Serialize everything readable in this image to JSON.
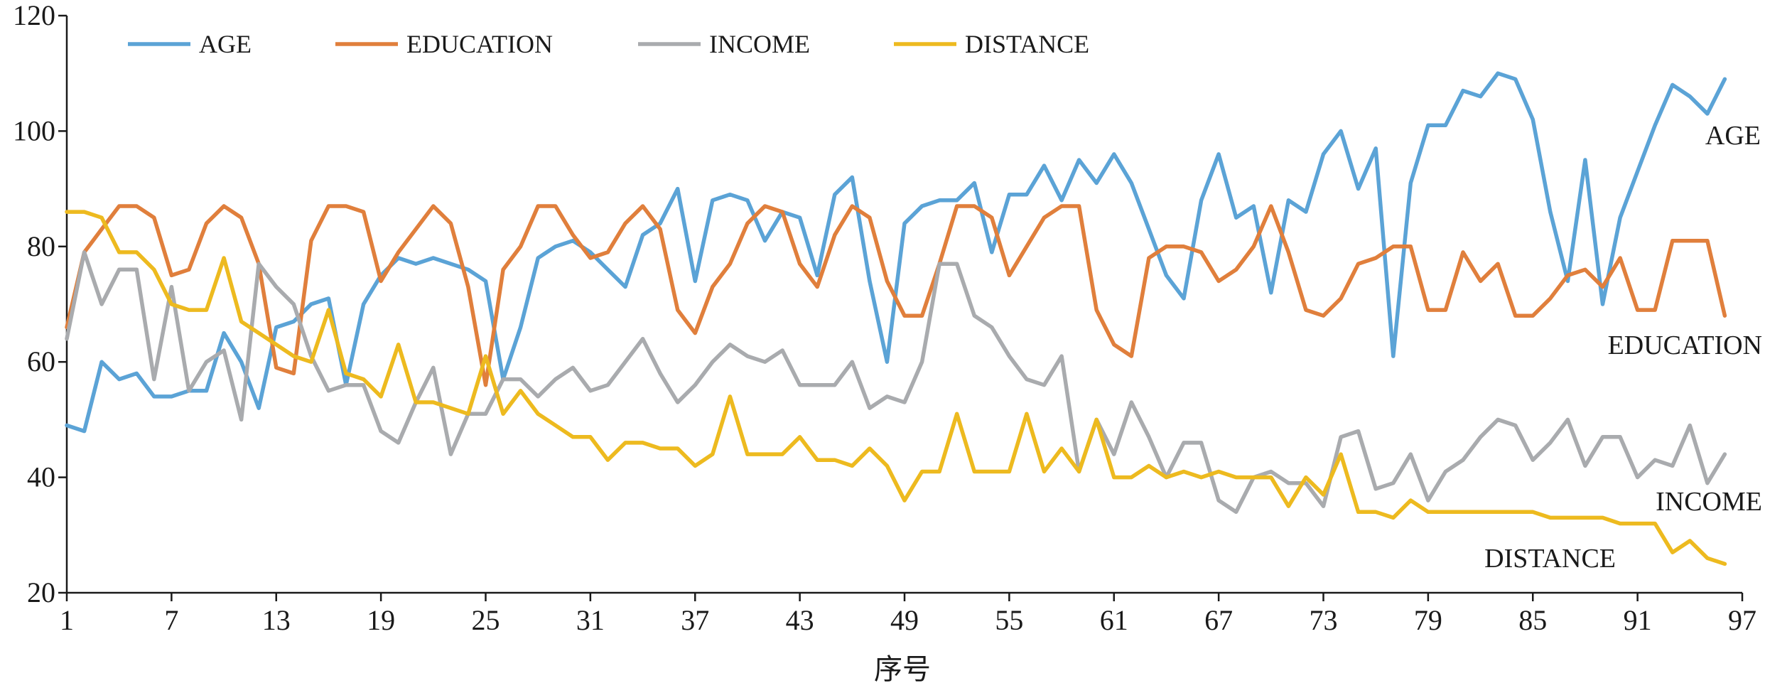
{
  "chart_data": {
    "type": "line",
    "title": "",
    "xlabel": "序号",
    "ylabel": "",
    "xlim": [
      1,
      97
    ],
    "ylim": [
      20,
      120
    ],
    "x_ticks": [
      1,
      7,
      13,
      19,
      25,
      31,
      37,
      43,
      49,
      55,
      61,
      67,
      73,
      79,
      85,
      91,
      97
    ],
    "y_ticks": [
      20,
      40,
      60,
      80,
      100,
      120
    ],
    "grid": false,
    "legend": "top-left",
    "series": [
      {
        "name": "AGE",
        "color": "#5BA3D6",
        "end_label": "AGE",
        "values": [
          49,
          48,
          60,
          57,
          58,
          54,
          54,
          55,
          55,
          65,
          60,
          52,
          66,
          67,
          70,
          71,
          56,
          70,
          75,
          78,
          77,
          78,
          77,
          76,
          74,
          57,
          66,
          78,
          80,
          81,
          79,
          76,
          73,
          82,
          84,
          90,
          74,
          88,
          89,
          88,
          81,
          86,
          85,
          75,
          89,
          92,
          74,
          60,
          84,
          87,
          88,
          88,
          91,
          79,
          89,
          89,
          94,
          88,
          95,
          91,
          96,
          91,
          83,
          75,
          71,
          88,
          96,
          85,
          87,
          72,
          88,
          86,
          96,
          100,
          90,
          97,
          61,
          91,
          101,
          101,
          107,
          106,
          110,
          109,
          102,
          86,
          74,
          95,
          70,
          85,
          93,
          101,
          108,
          106,
          103,
          109
        ]
      },
      {
        "name": "EDUCATION",
        "color": "#E07F3C",
        "end_label": "EDUCATION",
        "values": [
          66,
          79,
          83,
          87,
          87,
          85,
          75,
          76,
          84,
          87,
          85,
          77,
          59,
          58,
          81,
          87,
          87,
          86,
          74,
          79,
          83,
          87,
          84,
          73,
          56,
          76,
          80,
          87,
          87,
          82,
          78,
          79,
          84,
          87,
          83,
          69,
          65,
          73,
          77,
          84,
          87,
          86,
          77,
          73,
          82,
          87,
          85,
          74,
          68,
          68,
          77,
          87,
          87,
          85,
          75,
          80,
          85,
          87,
          87,
          69,
          63,
          61,
          78,
          80,
          80,
          79,
          74,
          76,
          80,
          87,
          79,
          69,
          68,
          71,
          77,
          78,
          80,
          80,
          69,
          69,
          79,
          74,
          77,
          68,
          68,
          71,
          75,
          76,
          73,
          78,
          69,
          69,
          81,
          81,
          81,
          68
        ]
      },
      {
        "name": "INCOME",
        "color": "#A9ABAE",
        "end_label": "INCOME",
        "values": [
          64,
          79,
          70,
          76,
          76,
          57,
          73,
          55,
          60,
          62,
          50,
          77,
          73,
          70,
          61,
          55,
          56,
          56,
          48,
          46,
          53,
          59,
          44,
          51,
          51,
          57,
          57,
          54,
          57,
          59,
          55,
          56,
          60,
          64,
          58,
          53,
          56,
          60,
          63,
          61,
          60,
          62,
          56,
          56,
          56,
          60,
          52,
          54,
          53,
          60,
          77,
          77,
          68,
          66,
          61,
          57,
          56,
          61,
          41,
          50,
          44,
          53,
          47,
          40,
          46,
          46,
          36,
          34,
          40,
          41,
          39,
          39,
          35,
          47,
          48,
          38,
          39,
          44,
          36,
          41,
          43,
          47,
          50,
          49,
          43,
          46,
          50,
          42,
          47,
          47,
          40,
          43,
          42,
          49,
          39,
          44
        ]
      },
      {
        "name": "DISTANCE",
        "color": "#EDBA1F",
        "end_label": "DISTANCE",
        "values": [
          86,
          86,
          85,
          79,
          79,
          76,
          70,
          69,
          69,
          78,
          67,
          65,
          63,
          61,
          60,
          69,
          58,
          57,
          54,
          63,
          53,
          53,
          52,
          51,
          61,
          51,
          55,
          51,
          49,
          47,
          47,
          43,
          46,
          46,
          45,
          45,
          42,
          44,
          54,
          44,
          44,
          44,
          47,
          43,
          43,
          42,
          45,
          42,
          36,
          41,
          41,
          51,
          41,
          41,
          41,
          51,
          41,
          45,
          41,
          50,
          40,
          40,
          42,
          40,
          41,
          40,
          41,
          40,
          40,
          40,
          35,
          40,
          37,
          44,
          34,
          34,
          33,
          36,
          34,
          34,
          34,
          34,
          34,
          34,
          34,
          33,
          33,
          33,
          33,
          32,
          32,
          32,
          27,
          29,
          26,
          25
        ]
      }
    ]
  }
}
